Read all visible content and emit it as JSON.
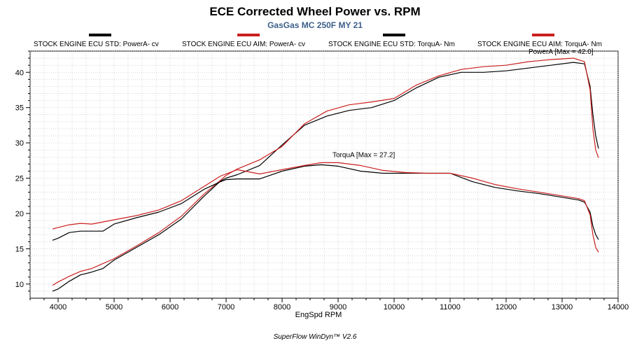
{
  "chart_data": {
    "type": "line",
    "title": "ECE Corrected Wheel Power vs. RPM",
    "subtitle": "GasGas MC 250F MY  21",
    "xlabel": "EngSpd  RPM",
    "ylabel": "",
    "xlim": [
      3500,
      14000
    ],
    "ylim": [
      8,
      43
    ],
    "x_ticks": [
      4000,
      5000,
      6000,
      7000,
      8000,
      9000,
      10000,
      11000,
      12000,
      13000,
      14000
    ],
    "y_ticks": [
      10,
      15,
      20,
      25,
      30,
      35,
      40
    ],
    "grid": true,
    "legend": [
      {
        "label": "STOCK ENGINE ECU STD: PowerA- cv",
        "color": "#000000"
      },
      {
        "label": "STOCK ENGINE ECU AIM: PowerA- cv",
        "color": "#cc1f1f"
      },
      {
        "label": "STOCK ENGINE ECU STD: TorquA- Nm",
        "color": "#000000"
      },
      {
        "label": "STOCK ENGINE ECU AIM: TorquA- Nm",
        "color": "#cc1f1f"
      }
    ],
    "series": [
      {
        "name": "STOCK ENGINE ECU STD: PowerA- cv",
        "color": "#000000",
        "x": [
          3900,
          4000,
          4200,
          4400,
          4600,
          4800,
          5000,
          5400,
          5800,
          6200,
          6600,
          6900,
          7000,
          7200,
          7600,
          8000,
          8400,
          8800,
          9200,
          9600,
          10000,
          10400,
          10800,
          11200,
          11600,
          12000,
          12400,
          12800,
          13200,
          13400,
          13500,
          13550,
          13600,
          13650
        ],
        "y": [
          9.0,
          9.3,
          10.4,
          11.3,
          11.7,
          12.2,
          13.4,
          15.2,
          17.0,
          19.2,
          22.4,
          24.6,
          25.0,
          25.5,
          26.8,
          29.7,
          32.5,
          33.8,
          34.6,
          35.0,
          36.0,
          37.8,
          39.3,
          40.0,
          40.0,
          40.2,
          40.6,
          41.0,
          41.4,
          41.2,
          38.0,
          34.0,
          31.0,
          29.2
        ]
      },
      {
        "name": "STOCK ENGINE ECU AIM: PowerA- cv",
        "color": "#cc1f1f",
        "x": [
          3900,
          4000,
          4200,
          4400,
          4600,
          4800,
          5000,
          5400,
          5800,
          6200,
          6600,
          6900,
          7000,
          7200,
          7600,
          8000,
          8400,
          8800,
          9200,
          9600,
          10000,
          10400,
          10800,
          11200,
          11600,
          12000,
          12400,
          12800,
          13200,
          13400,
          13500,
          13550,
          13600,
          13650
        ],
        "y": [
          9.8,
          10.3,
          11.1,
          11.8,
          12.2,
          12.9,
          13.6,
          15.4,
          17.3,
          19.6,
          22.7,
          24.7,
          25.4,
          26.3,
          27.6,
          29.5,
          32.7,
          34.5,
          35.4,
          35.8,
          36.3,
          38.2,
          39.5,
          40.4,
          40.8,
          41.0,
          41.5,
          41.8,
          42.0,
          41.5,
          37.5,
          32.0,
          29.0,
          27.9
        ]
      },
      {
        "name": "STOCK ENGINE ECU STD: TorquA- Nm",
        "color": "#000000",
        "x": [
          3900,
          4000,
          4200,
          4400,
          4600,
          4800,
          5000,
          5400,
          5800,
          6200,
          6600,
          6900,
          7000,
          7200,
          7600,
          8000,
          8400,
          8700,
          9000,
          9400,
          9800,
          10200,
          10600,
          11000,
          11400,
          11800,
          12200,
          12600,
          13000,
          13300,
          13400,
          13500,
          13550,
          13600,
          13650
        ],
        "y": [
          16.2,
          16.5,
          17.3,
          17.5,
          17.5,
          17.5,
          18.5,
          19.4,
          20.2,
          21.4,
          23.4,
          24.5,
          24.8,
          24.9,
          24.9,
          26.0,
          26.7,
          26.9,
          26.7,
          26.0,
          25.7,
          25.7,
          25.7,
          25.7,
          24.5,
          23.7,
          23.2,
          22.8,
          22.3,
          21.9,
          21.6,
          20.2,
          18.2,
          17.0,
          16.3
        ]
      },
      {
        "name": "STOCK ENGINE ECU AIM: TorquA- Nm",
        "color": "#cc1f1f",
        "x": [
          3900,
          4000,
          4200,
          4400,
          4600,
          4800,
          5000,
          5400,
          5800,
          6200,
          6600,
          6900,
          7000,
          7200,
          7600,
          8000,
          8400,
          8700,
          9000,
          9400,
          9800,
          10200,
          10600,
          11000,
          11400,
          11800,
          12200,
          12600,
          13000,
          13300,
          13400,
          13500,
          13550,
          13600,
          13650
        ],
        "y": [
          17.8,
          18.0,
          18.4,
          18.6,
          18.5,
          18.8,
          19.1,
          19.7,
          20.5,
          21.8,
          23.8,
          25.3,
          25.6,
          26.2,
          25.6,
          26.2,
          26.8,
          27.2,
          27.2,
          26.8,
          26.1,
          25.8,
          25.7,
          25.7,
          25.0,
          24.1,
          23.5,
          23.0,
          22.5,
          22.1,
          21.8,
          19.8,
          17.0,
          15.2,
          14.5
        ]
      }
    ],
    "annotations": [
      {
        "text": "PowerA [Max = 42.0]",
        "x": 12400,
        "y": 42.0
      },
      {
        "text": "TorquA [Max = 27.2]",
        "x": 8900,
        "y": 27.2
      }
    ]
  },
  "footer": "SuperFlow WinDyn™ V2.6"
}
